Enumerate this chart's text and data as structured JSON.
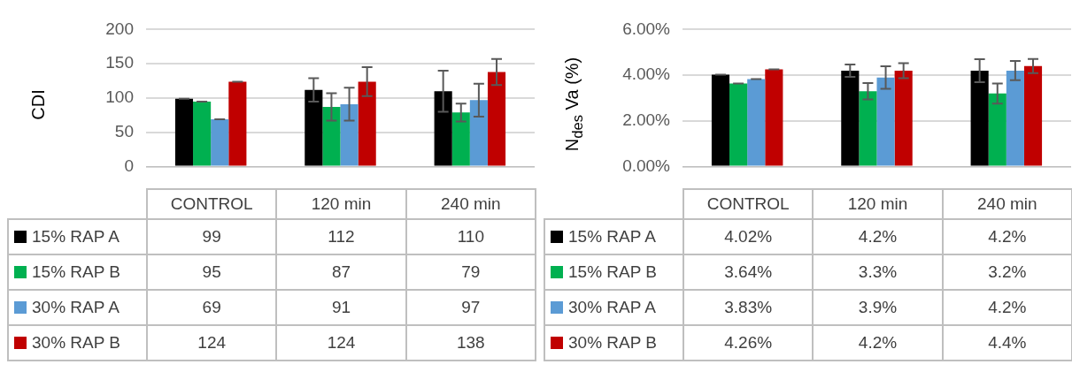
{
  "chart_data": [
    {
      "type": "bar",
      "ylabel": "CDI",
      "categories": [
        "CONTROL",
        "120 min",
        "240 min"
      ],
      "ylim": [
        0,
        200
      ],
      "yticks": [
        0,
        50,
        100,
        150,
        200
      ],
      "grid": "y",
      "legend": "bottom",
      "data_labels": true,
      "series": [
        {
          "name": "15% RAP A",
          "color": "#000000",
          "values": [
            99,
            112,
            110
          ],
          "errors": [
            0,
            17,
            30
          ]
        },
        {
          "name": "15% RAP B",
          "color": "#00b050",
          "values": [
            95,
            87,
            79
          ],
          "errors": [
            0,
            20,
            13
          ]
        },
        {
          "name": "30% RAP A",
          "color": "#5b9bd5",
          "values": [
            69,
            91,
            97
          ],
          "errors": [
            0,
            24,
            24
          ]
        },
        {
          "name": "30% RAP B",
          "color": "#c00000",
          "values": [
            124,
            124,
            138
          ],
          "errors": [
            0,
            21,
            19
          ]
        }
      ]
    },
    {
      "type": "bar",
      "ylabel": "N$_{des}$ Va (%)",
      "categories": [
        "CONTROL",
        "120 min",
        "240 min"
      ],
      "ylim": [
        0,
        6
      ],
      "yticks": [
        {
          "value": 0,
          "label": "0.00%"
        },
        {
          "value": 2,
          "label": "2.00%"
        },
        {
          "value": 4,
          "label": "4.00%"
        },
        {
          "value": 6,
          "label": "6.00%"
        }
      ],
      "grid": "y",
      "legend": "bottom",
      "series": [
        {
          "name": "15% RAP A",
          "color": "#000000",
          "values": [
            4.02,
            4.2,
            4.2
          ],
          "value_labels": [
            "4.02%",
            "4.2%",
            "4.2%"
          ],
          "errors": [
            0,
            0.27,
            0.5
          ]
        },
        {
          "name": "15% RAP B",
          "color": "#00b050",
          "values": [
            3.64,
            3.3,
            3.2
          ],
          "value_labels": [
            "3.64%",
            "3.3%",
            "3.2%"
          ],
          "errors": [
            0,
            0.36,
            0.44
          ]
        },
        {
          "name": "30% RAP A",
          "color": "#5b9bd5",
          "values": [
            3.83,
            3.9,
            4.2
          ],
          "value_labels": [
            "3.83%",
            "3.9%",
            "4.2%"
          ],
          "errors": [
            0,
            0.49,
            0.42
          ]
        },
        {
          "name": "30% RAP B",
          "color": "#c00000",
          "values": [
            4.26,
            4.2,
            4.4
          ],
          "value_labels": [
            "4.26%",
            "4.2%",
            "4.4%"
          ],
          "errors": [
            0,
            0.33,
            0.31
          ]
        }
      ]
    }
  ]
}
